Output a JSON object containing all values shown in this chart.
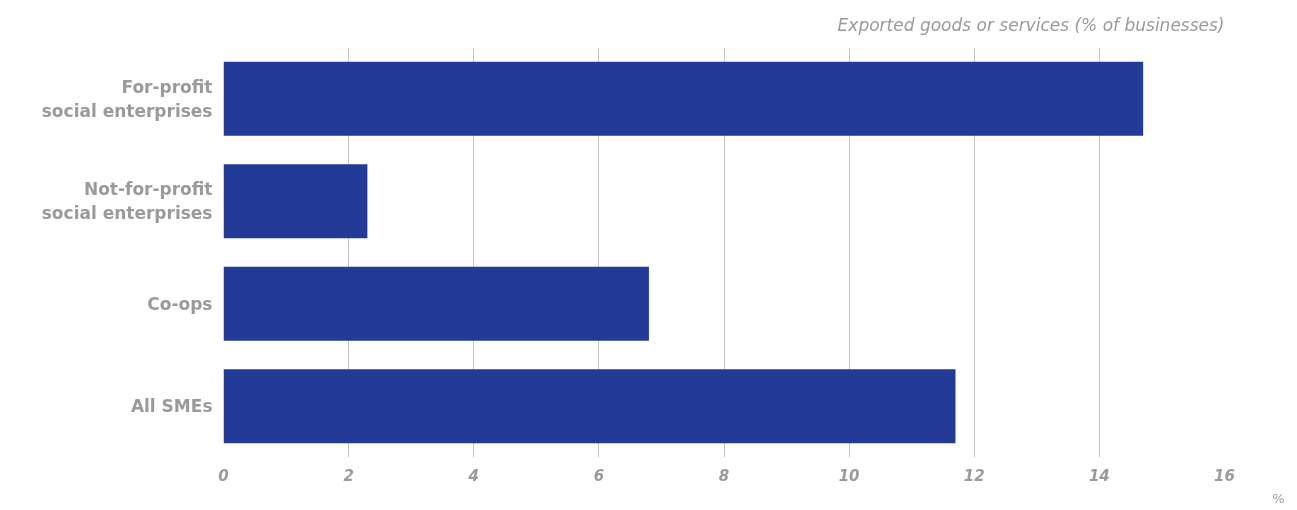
{
  "chart_data": {
    "type": "bar",
    "orientation": "horizontal",
    "title": "Exported goods or services (% of businesses)",
    "xlabel": "%",
    "categories": [
      "For-profit social enterprises",
      "Not-for-profit social enterprises",
      "Co-ops",
      "All SMEs"
    ],
    "values": [
      14.7,
      2.3,
      6.8,
      11.7
    ],
    "color": "#233a96",
    "xlim": [
      0,
      16
    ],
    "xticks": [
      0,
      2,
      4,
      6,
      8,
      10,
      12,
      14,
      16
    ],
    "grid": "x"
  }
}
